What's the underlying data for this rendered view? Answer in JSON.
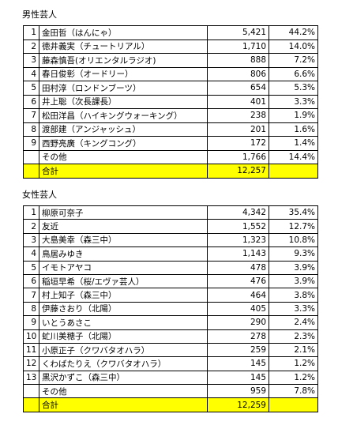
{
  "male": {
    "title": "男性芸人",
    "rows": [
      {
        "rank": "1",
        "name": "金田哲（はんにゃ）",
        "votes": "5,421",
        "pct": "44.2%"
      },
      {
        "rank": "2",
        "name": "徳井義実（チュートリアル）",
        "votes": "1,710",
        "pct": "14.0%"
      },
      {
        "rank": "3",
        "name": "藤森慎吾(オリエンタルラジオ)",
        "votes": "888",
        "pct": "7.2%"
      },
      {
        "rank": "4",
        "name": "春日俊彰（オードリー）",
        "votes": "806",
        "pct": "6.6%"
      },
      {
        "rank": "5",
        "name": "田村淳（ロンドンブーツ）",
        "votes": "654",
        "pct": "5.3%"
      },
      {
        "rank": "6",
        "name": "井上聡（次長課長）",
        "votes": "401",
        "pct": "3.3%"
      },
      {
        "rank": "7",
        "name": "松田洋昌（ハイキングウォーキング）",
        "votes": "238",
        "pct": "1.9%"
      },
      {
        "rank": "8",
        "name": "渡部建（アンジャッシュ）",
        "votes": "201",
        "pct": "1.6%"
      },
      {
        "rank": "9",
        "name": "西野亮廣（キングコング）",
        "votes": "172",
        "pct": "1.4%"
      },
      {
        "rank": "",
        "name": "その他",
        "votes": "1,766",
        "pct": "14.4%"
      }
    ],
    "total_label": "合計",
    "total_votes": "12,257"
  },
  "female": {
    "title": "女性芸人",
    "rows": [
      {
        "rank": "1",
        "name": "柳原可奈子",
        "votes": "4,342",
        "pct": "35.4%"
      },
      {
        "rank": "2",
        "name": "友近",
        "votes": "1,552",
        "pct": "12.7%"
      },
      {
        "rank": "3",
        "name": "大島美幸（森三中）",
        "votes": "1,323",
        "pct": "10.8%"
      },
      {
        "rank": "4",
        "name": "鳥居みゆき",
        "votes": "1,143",
        "pct": "9.3%"
      },
      {
        "rank": "5",
        "name": "イモトアヤコ",
        "votes": "478",
        "pct": "3.9%"
      },
      {
        "rank": "6",
        "name": "稲垣早希（桜/エヴァ芸人）",
        "votes": "476",
        "pct": "3.9%"
      },
      {
        "rank": "7",
        "name": "村上知子（森三中）",
        "votes": "464",
        "pct": "3.8%"
      },
      {
        "rank": "8",
        "name": "伊藤さおり（北陽）",
        "votes": "405",
        "pct": "3.3%"
      },
      {
        "rank": "9",
        "name": "いとうあさこ",
        "votes": "290",
        "pct": "2.4%"
      },
      {
        "rank": "10",
        "name": "虻川美穂子（北陽）",
        "votes": "278",
        "pct": "2.3%"
      },
      {
        "rank": "11",
        "name": "小原正子（クワバタオハラ）",
        "votes": "259",
        "pct": "2.1%"
      },
      {
        "rank": "12",
        "name": "くわばたりえ（クワバタオハラ）",
        "votes": "145",
        "pct": "1.2%"
      },
      {
        "rank": "13",
        "name": "黒沢かずこ（森三中）",
        "votes": "145",
        "pct": "1.2%"
      },
      {
        "rank": "",
        "name": "その他",
        "votes": "959",
        "pct": "7.8%"
      }
    ],
    "total_label": "合計",
    "total_votes": "12,259"
  },
  "colors": {
    "total_highlight": "#ffff00",
    "border": "#000000",
    "text": "#000000",
    "background": "#ffffff"
  }
}
